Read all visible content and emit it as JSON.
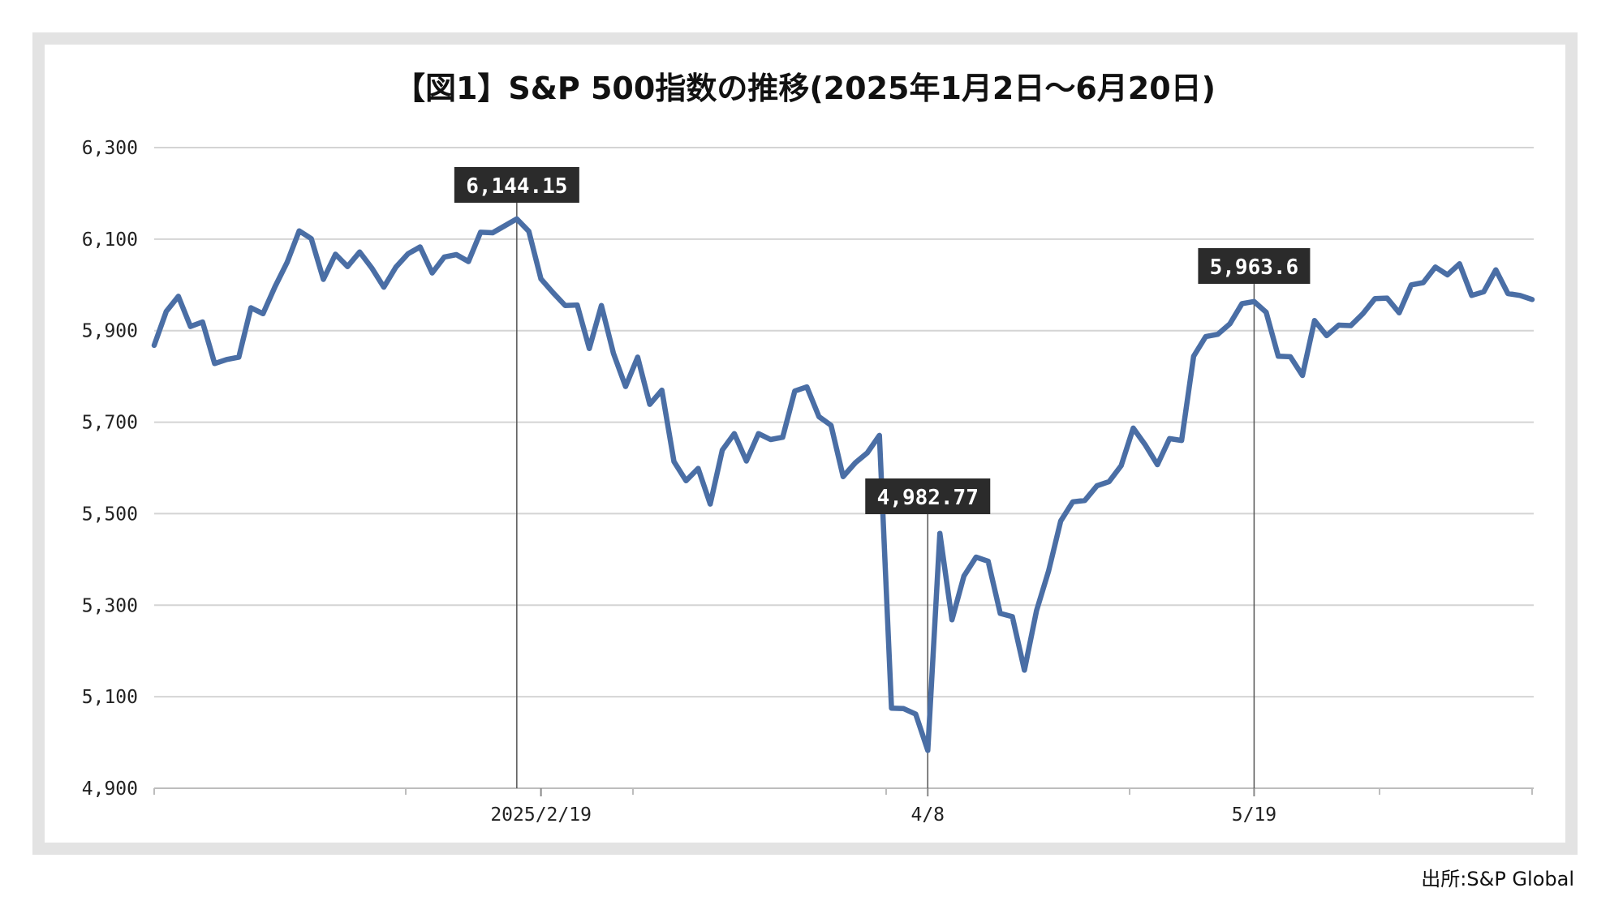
{
  "title": "【図1】S&P 500指数の推移(2025年1月2日〜6月20日)",
  "source": "出所:S&P Global",
  "chart_data": {
    "type": "line",
    "ylim": [
      4900,
      6300
    ],
    "yticks": [
      "6,300",
      "6,100",
      "5,900",
      "5,700",
      "5,500",
      "5,300",
      "5,100",
      "4,900"
    ],
    "ytick_values": [
      6300,
      6100,
      5900,
      5700,
      5500,
      5300,
      5100,
      4900
    ],
    "xtick_labels": [
      "2025/2/19",
      "4/8",
      "5/19"
    ],
    "xtick_indices": [
      32,
      64,
      91
    ],
    "grid": true,
    "line_color": "#4a6ea5",
    "series": [
      {
        "values": [
          5868,
          5942,
          5975,
          5909,
          5919,
          5828,
          5837,
          5842,
          5950,
          5937,
          5996,
          6049,
          6118,
          6101,
          6012,
          6067,
          6040,
          6072,
          6037,
          5995,
          6039,
          6068,
          6083,
          6026,
          6061,
          6066,
          6051,
          6115,
          6114,
          6129,
          6144.15,
          6117,
          6013,
          5983,
          5955,
          5956,
          5861,
          5955,
          5850,
          5778,
          5842,
          5739,
          5770,
          5614,
          5572,
          5599,
          5521,
          5639,
          5675,
          5615,
          5675,
          5662,
          5667,
          5768,
          5777,
          5712,
          5693,
          5581,
          5611,
          5633,
          5671,
          5075,
          5074,
          5062,
          4982.77,
          5457,
          5268,
          5364,
          5405,
          5396,
          5282,
          5275,
          5158,
          5288,
          5375,
          5484,
          5526,
          5529,
          5561,
          5570,
          5605,
          5687,
          5650,
          5607,
          5664,
          5660,
          5844,
          5887,
          5892,
          5915,
          5959,
          5963.6,
          5940,
          5844,
          5843,
          5802,
          5922,
          5889,
          5912,
          5911,
          5937,
          5970,
          5971,
          5939,
          6000,
          6005,
          6039,
          6022,
          6046,
          5977,
          5985,
          6033,
          5981,
          5977,
          5968
        ]
      }
    ],
    "annotations": [
      {
        "label": "6,144.15",
        "index": 30
      },
      {
        "label": "4,982.77",
        "index": 64
      },
      {
        "label": "5,963.6",
        "index": 91
      }
    ]
  }
}
